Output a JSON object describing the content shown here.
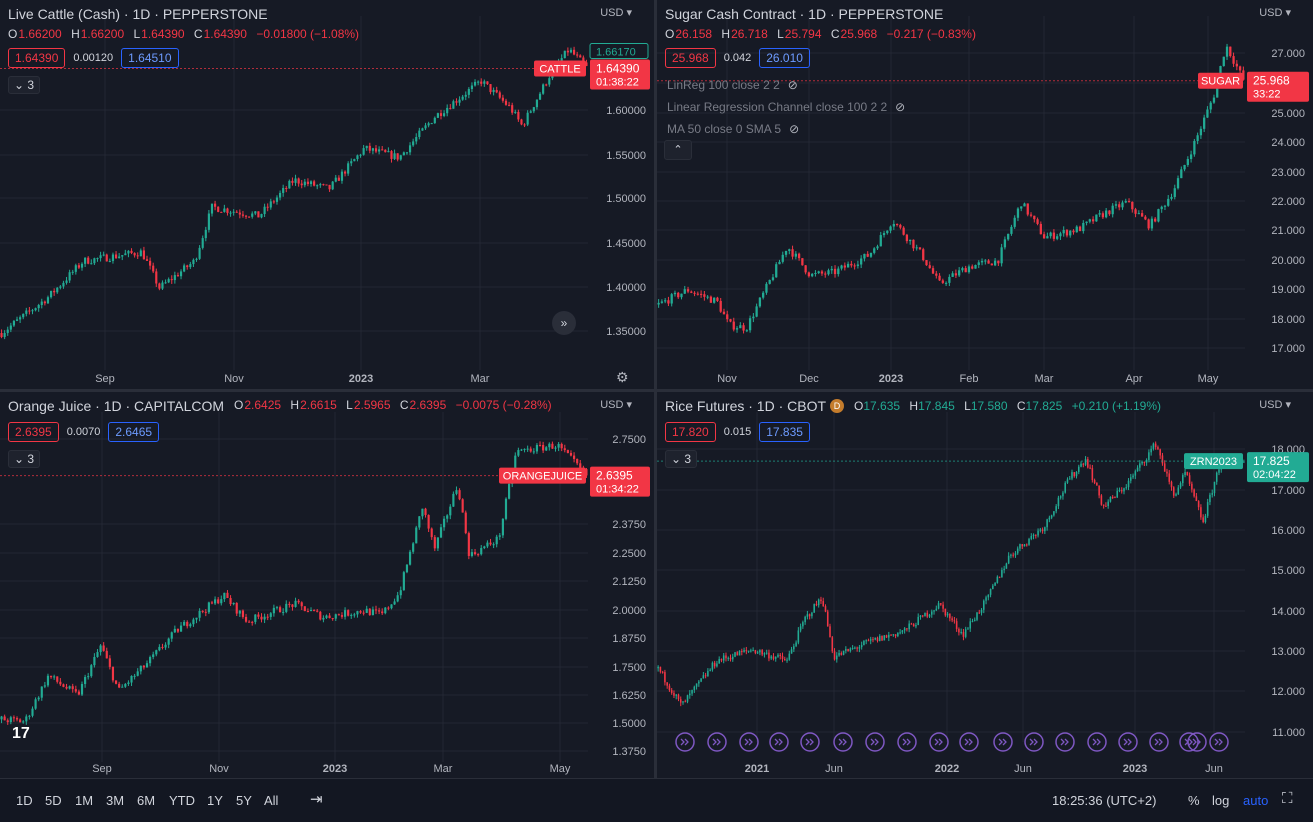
{
  "colors": {
    "up": "#22ab94",
    "down": "#f23645",
    "accent": "#2962ff",
    "bg": "#161a25",
    "grid": "#232733",
    "axis_text": "#b2b5be"
  },
  "panes": [
    {
      "id": "cattle",
      "title": "Live Cattle (Cash) · 1D · PEPPERSTONE",
      "ohlc": {
        "o": "1.66200",
        "h": "1.66200",
        "l": "1.64390",
        "c": "1.64390",
        "chg": "−0.01800 (−1.08%)"
      },
      "sell": "1.64390",
      "spread": "0.00120",
      "buy": "1.64510",
      "collapse": "3",
      "currency": "USD",
      "price_ticks": [
        "1.60000",
        "1.55000",
        "1.50000",
        "1.45000",
        "1.40000",
        "1.35000"
      ],
      "time_ticks": [
        "Sep",
        "Nov",
        "2023",
        "Mar"
      ],
      "last_label": "CATTLE",
      "last_price": "1.64390",
      "countdown": "01:38:22",
      "high_tag": "1.66170",
      "ylim": [
        1.32,
        1.68
      ]
    },
    {
      "id": "sugar",
      "title": "Sugar Cash Contract · 1D · PEPPERSTONE",
      "ohlc": {
        "o": "26.158",
        "h": "26.718",
        "l": "25.794",
        "c": "25.968",
        "chg": "−0.217 (−0.83%)"
      },
      "sell": "25.968",
      "spread": "0.042",
      "buy": "26.010",
      "indicators": [
        "LinReg 100 close 2 2",
        "Linear Regression Channel close 100 2 2",
        "MA 50 close 0 SMA 5"
      ],
      "currency": "USD",
      "price_ticks": [
        "27.000",
        "26.000",
        "25.000",
        "24.000",
        "23.000",
        "22.000",
        "21.000",
        "20.000",
        "19.000",
        "18.000",
        "17.000"
      ],
      "time_ticks": [
        "Nov",
        "Dec",
        "2023",
        "Feb",
        "Mar",
        "Apr",
        "May"
      ],
      "last_label": "SUGAR",
      "last_price": "25.968",
      "countdown": "33:22",
      "ylim": [
        16.4,
        27.5
      ]
    },
    {
      "id": "oj",
      "title": "Orange Juice · 1D · CAPITALCOM",
      "ohlc": {
        "o": "2.6425",
        "h": "2.6615",
        "l": "2.5965",
        "c": "2.6395",
        "chg": "−0.0075 (−0.28%)"
      },
      "sell": "2.6395",
      "spread": "0.0070",
      "buy": "2.6465",
      "collapse": "3",
      "currency": "USD",
      "price_ticks": [
        "2.7500",
        "2.3750",
        "2.2500",
        "2.1250",
        "2.0000",
        "1.8750",
        "1.7500",
        "1.6250",
        "1.5000",
        "1.3750"
      ],
      "time_ticks": [
        "Sep",
        "Nov",
        "2023",
        "Mar",
        "May"
      ],
      "last_label": "ORANGEJUICE",
      "last_price": "2.6395",
      "countdown": "01:34:22",
      "ylim": [
        1.37,
        2.84
      ]
    },
    {
      "id": "rice",
      "title": "Rice Futures · 1D · CBOT",
      "badge": "D",
      "ohlc": {
        "o": "17.635",
        "h": "17.845",
        "l": "17.580",
        "c": "17.825",
        "chg": "+0.210 (+1.19%)"
      },
      "sell": "17.820",
      "spread": "0.015",
      "buy": "17.835",
      "collapse": "3",
      "currency": "USD",
      "price_ticks": [
        "18.000",
        "17.000",
        "16.000",
        "15.000",
        "14.000",
        "13.000",
        "12.000",
        "11.000"
      ],
      "time_ticks": [
        "2021",
        "Jun",
        "2022",
        "Jun",
        "2023",
        "Jun"
      ],
      "last_label": "ZRN2023",
      "last_price": "17.825",
      "countdown": "02:04:22",
      "ylim": [
        10.6,
        18.6
      ]
    }
  ],
  "bottom": {
    "ranges": [
      "1D",
      "5D",
      "1M",
      "3M",
      "6M",
      "YTD",
      "1Y",
      "5Y",
      "All"
    ],
    "time": "18:25:36 (UTC+2)",
    "percent": "%",
    "log": "log",
    "auto": "auto"
  },
  "logo_text": "17"
}
